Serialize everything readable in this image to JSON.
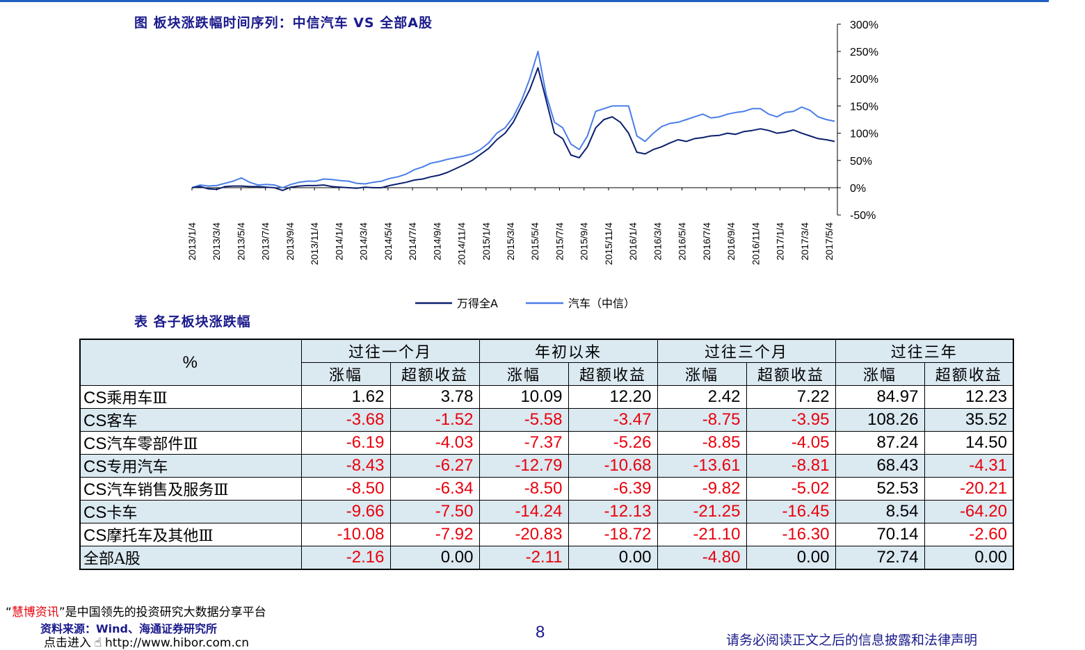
{
  "figure_title": "图 板块涨跌幅时间序列：中信汽车 VS 全部A股",
  "table_title": "表 各子板块涨跌幅",
  "colors": {
    "series_dark": "#0b1f6e",
    "series_light": "#4a7de8",
    "negative": "#e8000b",
    "header_bg": "#dbe9f1",
    "title": "#1a1a8c"
  },
  "chart_data": {
    "type": "line",
    "x_ticks": [
      "2013/1/4",
      "2013/3/4",
      "2013/5/4",
      "2013/7/4",
      "2013/9/4",
      "2013/11/4",
      "2014/1/4",
      "2014/3/4",
      "2014/5/4",
      "2014/7/4",
      "2014/9/4",
      "2014/11/4",
      "2015/1/4",
      "2015/3/4",
      "2015/5/4",
      "2015/7/4",
      "2015/9/4",
      "2015/11/4",
      "2016/1/4",
      "2016/3/4",
      "2016/5/4",
      "2016/7/4",
      "2016/9/4",
      "2016/11/4",
      "2017/1/4",
      "2017/3/4",
      "2017/5/4"
    ],
    "y_ticks": [
      "300%",
      "250%",
      "200%",
      "150%",
      "100%",
      "50%",
      "0%",
      "-50%"
    ],
    "ylim": [
      -50,
      300
    ],
    "y_axis_side": "right",
    "legend_position": "bottom",
    "series": [
      {
        "name": "万得全A",
        "values": [
          0,
          2,
          -2,
          -3,
          2,
          3,
          3,
          2,
          2,
          1,
          0,
          -5,
          1,
          3,
          4,
          4,
          5,
          2,
          1,
          0,
          -1,
          1,
          0,
          0,
          4,
          7,
          10,
          14,
          16,
          20,
          23,
          28,
          35,
          42,
          50,
          61,
          72,
          88,
          100,
          120,
          150,
          180,
          220,
          160,
          100,
          90,
          60,
          55,
          75,
          110,
          125,
          130,
          120,
          100,
          65,
          62,
          70,
          75,
          82,
          88,
          85,
          90,
          92,
          95,
          96,
          100,
          98,
          103,
          105,
          108,
          105,
          100,
          102,
          106,
          100,
          95,
          90,
          88,
          85
        ]
      },
      {
        "name": "汽车（中信）",
        "values": [
          0,
          5,
          3,
          4,
          8,
          12,
          18,
          10,
          5,
          6,
          5,
          0,
          6,
          10,
          12,
          12,
          16,
          15,
          13,
          12,
          8,
          7,
          10,
          12,
          17,
          20,
          25,
          33,
          38,
          45,
          48,
          52,
          55,
          58,
          62,
          70,
          82,
          100,
          110,
          130,
          160,
          200,
          250,
          170,
          120,
          110,
          80,
          70,
          95,
          140,
          145,
          150,
          150,
          150,
          95,
          85,
          100,
          112,
          118,
          120,
          125,
          130,
          135,
          128,
          130,
          135,
          138,
          140,
          145,
          145,
          135,
          130,
          138,
          140,
          148,
          142,
          130,
          125,
          122
        ]
      }
    ]
  },
  "table": {
    "corner_label": "%",
    "groups": [
      "过往一个月",
      "年初以来",
      "过往三个月",
      "过往三年"
    ],
    "subheaders": [
      "涨幅",
      "超额收益",
      "涨幅",
      "超额收益",
      "涨幅",
      "超额收益",
      "涨幅",
      "超额收益"
    ],
    "rows": [
      {
        "prefix": "CS",
        "name": "乘用车Ⅲ",
        "values": [
          "1.62",
          "3.78",
          "10.09",
          "12.20",
          "2.42",
          "7.22",
          "84.97",
          "12.23"
        ]
      },
      {
        "prefix": "CS",
        "name": "客车",
        "values": [
          "-3.68",
          "-1.52",
          "-5.58",
          "-3.47",
          "-8.75",
          "-3.95",
          "108.26",
          "35.52"
        ]
      },
      {
        "prefix": "CS",
        "name": "汽车零部件Ⅲ",
        "values": [
          "-6.19",
          "-4.03",
          "-7.37",
          "-5.26",
          "-8.85",
          "-4.05",
          "87.24",
          "14.50"
        ]
      },
      {
        "prefix": "CS",
        "name": "专用汽车",
        "values": [
          "-8.43",
          "-6.27",
          "-12.79",
          "-10.68",
          "-13.61",
          "-8.81",
          "68.43",
          "-4.31"
        ]
      },
      {
        "prefix": "CS",
        "name": "汽车销售及服务Ⅲ",
        "values": [
          "-8.50",
          "-6.34",
          "-8.50",
          "-6.39",
          "-9.82",
          "-5.02",
          "52.53",
          "-20.21"
        ]
      },
      {
        "prefix": "CS",
        "name": "卡车",
        "values": [
          "-9.66",
          "-7.50",
          "-14.24",
          "-12.13",
          "-21.25",
          "-16.45",
          "8.54",
          "-64.20"
        ]
      },
      {
        "prefix": "CS",
        "name": "摩托车及其他Ⅲ",
        "values": [
          "-10.08",
          "-7.92",
          "-20.83",
          "-18.72",
          "-21.10",
          "-16.30",
          "70.14",
          "-2.60"
        ]
      },
      {
        "prefix": "",
        "name": "全部A股",
        "values": [
          "-2.16",
          "0.00",
          "-2.11",
          "0.00",
          "-4.80",
          "0.00",
          "72.74",
          "0.00"
        ]
      }
    ]
  },
  "footer": {
    "brand_open": "“",
    "brand": "慧博资讯",
    "brand_close": "”",
    "tagline": "是中国领先的投资研究大数据分享平台",
    "source": "资料来源：Wind、海通证券研究所",
    "link_prefix": "点击进入",
    "link_icon": "hand-pointer-icon",
    "link_url": "http://www.hibor.com.cn",
    "page_number": "8",
    "disclaimer": "请务必阅读正文之后的信息披露和法律声明"
  }
}
